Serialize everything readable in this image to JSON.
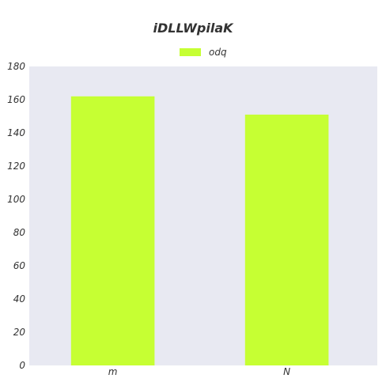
{
  "chart_data": {
    "type": "bar",
    "title": "iDLLWpilaK",
    "xlabel": "",
    "ylabel": "",
    "categories": [
      "m",
      "N"
    ],
    "series": [
      {
        "name": "odq",
        "values": [
          162,
          151
        ],
        "color": "#c6ff33"
      }
    ],
    "ylim": [
      0,
      180
    ],
    "yticks": [
      0,
      20,
      40,
      60,
      80,
      100,
      120,
      140,
      160,
      180
    ],
    "grid": false,
    "legend_position": "top-center",
    "plot_background": "#e8e9f2"
  }
}
